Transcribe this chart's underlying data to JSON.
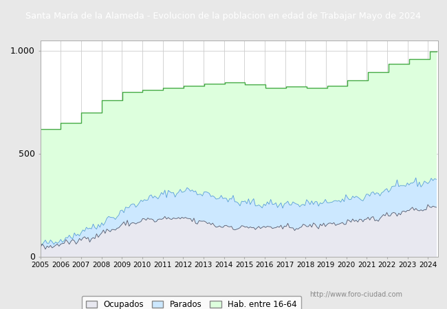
{
  "title": "Santa María de la Alameda - Evolucion de la poblacion en edad de Trabajar Mayo de 2024",
  "title_bg": "#4472c4",
  "title_color": "white",
  "years_x": [
    2005,
    2006,
    2007,
    2008,
    2009,
    2010,
    2011,
    2012,
    2013,
    2014,
    2015,
    2016,
    2017,
    2018,
    2019,
    2020,
    2021,
    2022,
    2023,
    2024
  ],
  "hab_steps": [
    620,
    650,
    700,
    760,
    800,
    810,
    820,
    830,
    840,
    845,
    835,
    820,
    825,
    820,
    830,
    855,
    895,
    935,
    960,
    995
  ],
  "color_hab": "#ddffdd",
  "color_hab_line": "#44aa44",
  "color_parados": "#cce8ff",
  "color_parados_line": "#5599dd",
  "color_ocupados": "#e8e8f0",
  "color_ocupados_line": "#555566",
  "ylim": [
    0,
    1050
  ],
  "yticks": [
    0,
    500,
    1000
  ],
  "ytick_labels": [
    "0",
    "500",
    "1.000"
  ],
  "watermark": "http://www.foro-ciudad.com",
  "legend_labels": [
    "Ocupados",
    "Parados",
    "Hab. entre 16-64"
  ],
  "bg_color": "white",
  "outer_bg": "#e8e8e8"
}
